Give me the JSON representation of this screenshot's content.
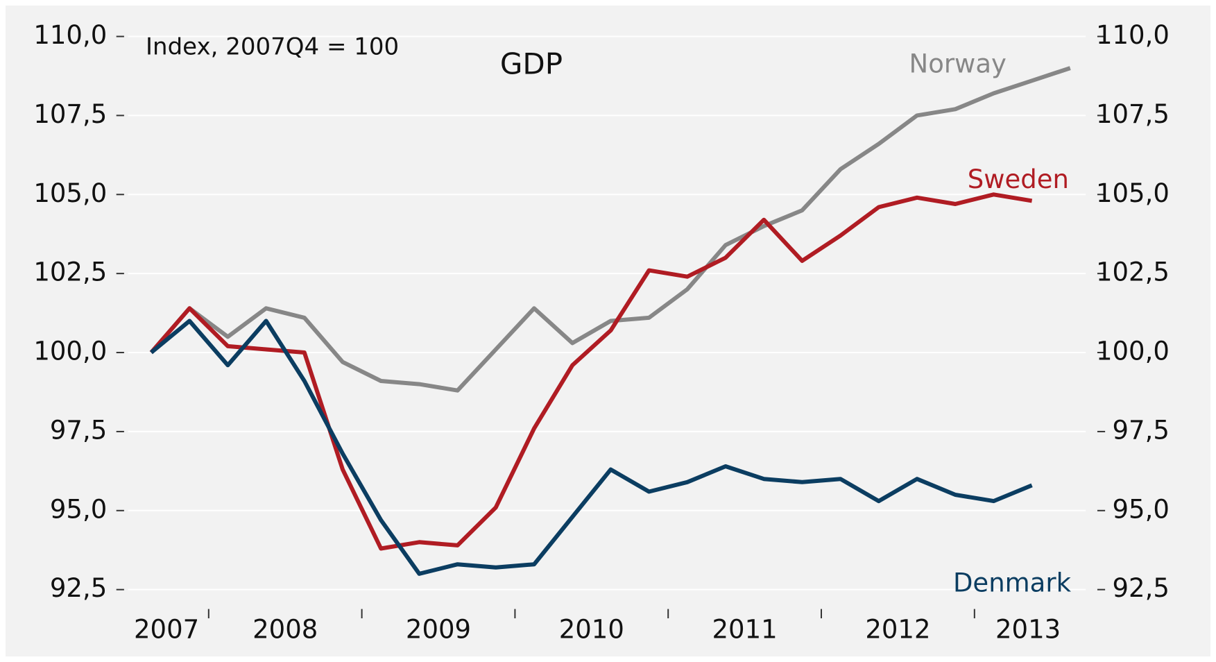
{
  "chart_data": {
    "type": "line",
    "title": "GDP",
    "subtitle": "Index, 2007Q4 = 100",
    "categories": [
      "2007",
      null,
      null,
      "2008",
      null,
      null,
      null,
      "2009",
      null,
      null,
      null,
      "2010",
      null,
      null,
      null,
      "2011",
      null,
      null,
      null,
      "2012",
      null,
      null,
      null,
      "2013",
      null
    ],
    "series": [
      {
        "name": "Norway",
        "color": "#878787",
        "values": [
          100,
          101.4,
          100.5,
          101.4,
          101.1,
          99.7,
          99.1,
          99.0,
          98.8,
          100.1,
          101.4,
          100.3,
          101.0,
          101.1,
          102.0,
          103.4,
          104.0,
          104.5,
          105.8,
          106.6,
          107.5,
          107.7,
          108.2,
          108.6,
          109.0
        ]
      },
      {
        "name": "Sweden",
        "color": "#b01c23",
        "values": [
          100,
          101.4,
          100.2,
          100.1,
          100.0,
          96.3,
          93.8,
          94.0,
          93.9,
          95.1,
          97.6,
          99.6,
          100.7,
          102.6,
          102.4,
          103.0,
          104.2,
          102.9,
          103.7,
          104.6,
          104.9,
          104.7,
          105.0,
          104.8,
          null
        ]
      },
      {
        "name": "Denmark",
        "color": "#0b3d61",
        "values": [
          100,
          101.0,
          99.6,
          101.0,
          99.1,
          96.8,
          94.7,
          93.0,
          93.3,
          93.2,
          93.3,
          94.8,
          96.3,
          95.6,
          95.9,
          96.4,
          96.0,
          95.9,
          96.0,
          95.3,
          96.0,
          95.5,
          95.3,
          95.8,
          null
        ]
      }
    ],
    "ylim": [
      92.5,
      110
    ],
    "yticks": [
      {
        "value": 92.5,
        "label": "92,5"
      },
      {
        "value": 95,
        "label": "95,0"
      },
      {
        "value": 97.5,
        "label": "97,5"
      },
      {
        "value": 100,
        "label": "100,0"
      },
      {
        "value": 102.5,
        "label": "102,5"
      },
      {
        "value": 105,
        "label": "105,0"
      },
      {
        "value": 107.5,
        "label": "107,5"
      },
      {
        "value": 110,
        "label": "110,0"
      }
    ],
    "grid": true
  }
}
